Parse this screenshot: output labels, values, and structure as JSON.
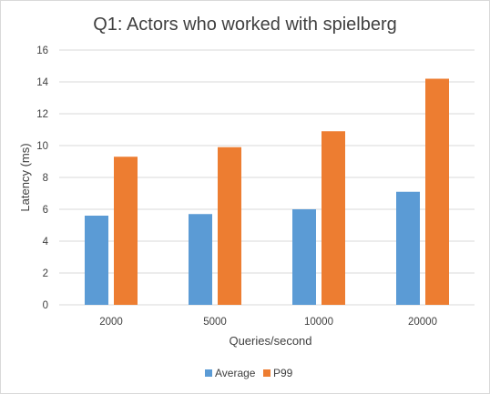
{
  "chart_data": {
    "type": "bar",
    "title": "Q1: Actors who worked with spielberg",
    "xlabel": "Queries/second",
    "ylabel": "Latency (ms)",
    "categories": [
      "2000",
      "5000",
      "10000",
      "20000"
    ],
    "series": [
      {
        "name": "Average",
        "values": [
          5.6,
          5.7,
          6.0,
          7.1
        ],
        "color": "#5b9bd5"
      },
      {
        "name": "P99",
        "values": [
          9.3,
          9.9,
          10.9,
          14.2
        ],
        "color": "#ed7d31"
      }
    ],
    "ylim": [
      0,
      16
    ],
    "yticks": [
      "0",
      "2",
      "4",
      "6",
      "8",
      "10",
      "12",
      "14",
      "16"
    ],
    "grid": true,
    "legend_position": "bottom"
  }
}
